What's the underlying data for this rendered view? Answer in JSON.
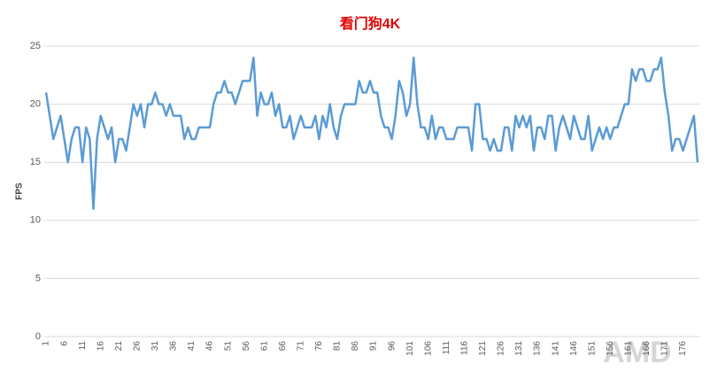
{
  "chart_data": {
    "type": "line",
    "title": "看门狗4K",
    "y_label": "FPS",
    "watermark": "AMD",
    "categories": [
      1,
      null,
      null,
      null,
      null,
      6,
      null,
      null,
      null,
      null,
      11,
      null,
      null,
      null,
      null,
      16,
      null,
      null,
      null,
      null,
      21,
      null,
      null,
      null,
      null,
      26,
      null,
      null,
      null,
      null,
      31,
      null,
      null,
      null,
      null,
      36,
      null,
      null,
      null,
      null,
      41,
      null,
      null,
      null,
      null,
      46,
      null,
      null,
      null,
      null,
      51,
      null,
      null,
      null,
      null,
      56,
      null,
      null,
      null,
      null,
      61,
      null,
      null,
      null,
      null,
      66,
      null,
      null,
      null,
      null,
      71,
      null,
      null,
      null,
      null,
      76,
      null,
      null,
      null,
      null,
      81,
      null,
      null,
      null,
      null,
      86,
      null,
      null,
      null,
      null,
      91,
      null,
      null,
      null,
      null,
      96,
      null,
      null,
      null,
      null,
      101,
      null,
      null,
      null,
      null,
      106,
      null,
      null,
      null,
      null,
      111,
      null,
      null,
      null,
      null,
      116,
      null,
      null,
      null,
      null,
      121,
      null,
      null,
      null,
      null,
      126,
      null,
      null,
      null,
      null,
      131,
      null,
      null,
      null,
      null,
      136,
      null,
      null,
      null,
      null,
      141,
      null,
      null,
      null,
      null,
      146,
      null,
      null,
      null,
      null,
      151,
      null,
      null,
      null,
      null,
      156,
      null,
      null,
      null,
      null,
      161,
      null,
      null,
      null,
      null,
      166,
      null,
      null,
      null,
      null,
      171,
      null,
      null,
      null,
      null,
      176,
      null,
      null,
      null,
      null
    ],
    "values": [
      21,
      19,
      17,
      18,
      19,
      17,
      15,
      17,
      18,
      18,
      15,
      18,
      17,
      11,
      17,
      19,
      18,
      17,
      18,
      15,
      17,
      17,
      16,
      18,
      20,
      19,
      20,
      18,
      20,
      20,
      21,
      20,
      20,
      19,
      20,
      19,
      19,
      19,
      17,
      18,
      17,
      17,
      18,
      18,
      18,
      18,
      20,
      21,
      21,
      22,
      21,
      21,
      20,
      21,
      22,
      22,
      22,
      24,
      19,
      21,
      20,
      20,
      21,
      19,
      20,
      18,
      18,
      19,
      17,
      18,
      19,
      18,
      18,
      18,
      19,
      17,
      19,
      18,
      20,
      18,
      17,
      19,
      20,
      20,
      20,
      20,
      22,
      21,
      21,
      22,
      21,
      21,
      19,
      18,
      18,
      17,
      19,
      22,
      21,
      19,
      20,
      24,
      20,
      18,
      18,
      17,
      19,
      17,
      18,
      18,
      17,
      17,
      17,
      18,
      18,
      18,
      18,
      16,
      20,
      20,
      17,
      17,
      16,
      17,
      16,
      16,
      18,
      18,
      16,
      19,
      18,
      19,
      18,
      19,
      16,
      18,
      18,
      17,
      19,
      19,
      16,
      18,
      19,
      18,
      17,
      19,
      18,
      17,
      17,
      19,
      16,
      17,
      18,
      17,
      18,
      17,
      18,
      18,
      19,
      20,
      20,
      23,
      22,
      23,
      23,
      22,
      22,
      23,
      23,
      24,
      21,
      19,
      16,
      17,
      17,
      16,
      17,
      18,
      19,
      15
    ],
    "color": "#5b9bd5",
    "ylim": [
      0,
      25
    ],
    "yticks": [
      0,
      5,
      10,
      15,
      20,
      25
    ],
    "grid": true
  }
}
